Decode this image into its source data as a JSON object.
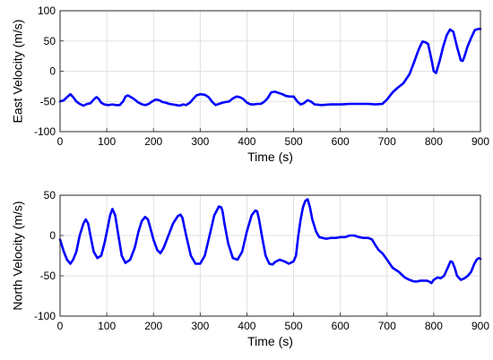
{
  "chart_data": [
    {
      "type": "line",
      "title": "",
      "xlabel": "Time (s)",
      "ylabel": "East Velocity (m/s)",
      "xlim": [
        0,
        900
      ],
      "ylim": [
        -100,
        100
      ],
      "xticks": [
        0,
        100,
        200,
        300,
        400,
        500,
        600,
        700,
        800,
        900
      ],
      "yticks": [
        -100,
        -50,
        0,
        50,
        100
      ],
      "grid": true,
      "series": [
        {
          "color": "#0000ff",
          "x": [
            0,
            8,
            15,
            22,
            28,
            35,
            42,
            50,
            58,
            65,
            72,
            78,
            82,
            88,
            95,
            103,
            112,
            120,
            128,
            135,
            140,
            145,
            152,
            160,
            168,
            176,
            183,
            190,
            197,
            205,
            212,
            219,
            226,
            234,
            241,
            249,
            256,
            263,
            270,
            278,
            285,
            292,
            300,
            310,
            318,
            326,
            333,
            340,
            348,
            355,
            362,
            370,
            378,
            385,
            392,
            400,
            408,
            415,
            422,
            430,
            438,
            445,
            452,
            460,
            468,
            476,
            484,
            492,
            500,
            508,
            515,
            522,
            530,
            537,
            545,
            560,
            580,
            600,
            620,
            640,
            660,
            675,
            690,
            700,
            712,
            722,
            735,
            748,
            758,
            765,
            770,
            776,
            782,
            788,
            795,
            800,
            805,
            812,
            820,
            828,
            835,
            842,
            850,
            858,
            862,
            866,
            872,
            880,
            888,
            895,
            900
          ],
          "y": [
            -50,
            -48,
            -43,
            -38,
            -43,
            -50,
            -54,
            -57,
            -54,
            -53,
            -47,
            -43,
            -45,
            -52,
            -55,
            -56,
            -55,
            -56,
            -56,
            -50,
            -42,
            -40,
            -43,
            -47,
            -52,
            -55,
            -56,
            -54,
            -50,
            -47,
            -48,
            -51,
            -52,
            -54,
            -55,
            -56,
            -57,
            -55,
            -56,
            -52,
            -46,
            -40,
            -38,
            -39,
            -43,
            -51,
            -56,
            -54,
            -52,
            -51,
            -50,
            -45,
            -42,
            -43,
            -46,
            -52,
            -55,
            -55,
            -54,
            -54,
            -50,
            -44,
            -35,
            -34,
            -36,
            -38,
            -41,
            -42,
            -42,
            -50,
            -55,
            -53,
            -48,
            -50,
            -55,
            -56,
            -55,
            -55,
            -54,
            -54,
            -54,
            -55,
            -54,
            -47,
            -35,
            -28,
            -20,
            -5,
            15,
            30,
            40,
            49,
            48,
            45,
            20,
            0,
            -3,
            15,
            40,
            60,
            69,
            65,
            40,
            18,
            17,
            25,
            40,
            55,
            68,
            70,
            70
          ]
        }
      ]
    },
    {
      "type": "line",
      "title": "",
      "xlabel": "Time (s)",
      "ylabel": "North Velocity (m/s)",
      "xlim": [
        0,
        900
      ],
      "ylim": [
        -100,
        50
      ],
      "xticks": [
        0,
        100,
        200,
        300,
        400,
        500,
        600,
        700,
        800,
        900
      ],
      "yticks": [
        -100,
        -50,
        0,
        50
      ],
      "grid": true,
      "series": [
        {
          "color": "#0000ff",
          "x": [
            0,
            8,
            15,
            22,
            28,
            35,
            42,
            50,
            55,
            60,
            65,
            72,
            80,
            88,
            95,
            102,
            107,
            112,
            118,
            125,
            132,
            140,
            150,
            160,
            168,
            175,
            182,
            188,
            193,
            200,
            208,
            215,
            222,
            232,
            242,
            252,
            258,
            262,
            270,
            280,
            290,
            300,
            310,
            320,
            330,
            340,
            345,
            348,
            352,
            360,
            370,
            380,
            390,
            400,
            410,
            418,
            422,
            426,
            432,
            440,
            448,
            455,
            460,
            470,
            480,
            490,
            500,
            505,
            510,
            515,
            520,
            525,
            530,
            535,
            540,
            548,
            555,
            562,
            570,
            580,
            590,
            600,
            610,
            620,
            630,
            640,
            650,
            660,
            668,
            675,
            682,
            690,
            700,
            712,
            725,
            738,
            748,
            758,
            765,
            772,
            780,
            785,
            790,
            795,
            800,
            808,
            815,
            822,
            830,
            836,
            840,
            845,
            850,
            858,
            866,
            873,
            880,
            887,
            892,
            896,
            900
          ],
          "y": [
            -5,
            -20,
            -30,
            -35,
            -30,
            -20,
            0,
            15,
            20,
            15,
            0,
            -20,
            -28,
            -25,
            -10,
            10,
            25,
            33,
            25,
            0,
            -25,
            -34,
            -30,
            -15,
            5,
            18,
            23,
            20,
            10,
            -5,
            -18,
            -22,
            -15,
            0,
            15,
            24,
            26,
            22,
            0,
            -25,
            -35,
            -35,
            -25,
            0,
            25,
            36,
            35,
            30,
            15,
            -10,
            -28,
            -30,
            -20,
            5,
            25,
            31,
            30,
            20,
            0,
            -25,
            -35,
            -36,
            -33,
            -30,
            -32,
            -35,
            -32,
            -25,
            0,
            20,
            35,
            43,
            45,
            35,
            20,
            5,
            -2,
            -3,
            -4,
            -3,
            -3,
            -2,
            -2,
            0,
            0,
            -2,
            -3,
            -3,
            -5,
            -12,
            -18,
            -22,
            -30,
            -40,
            -45,
            -52,
            -55,
            -57,
            -57,
            -56,
            -56,
            -56,
            -57,
            -59,
            -55,
            -52,
            -53,
            -50,
            -40,
            -32,
            -33,
            -40,
            -50,
            -55,
            -53,
            -50,
            -45,
            -35,
            -30,
            -28,
            -29
          ]
        }
      ]
    }
  ]
}
